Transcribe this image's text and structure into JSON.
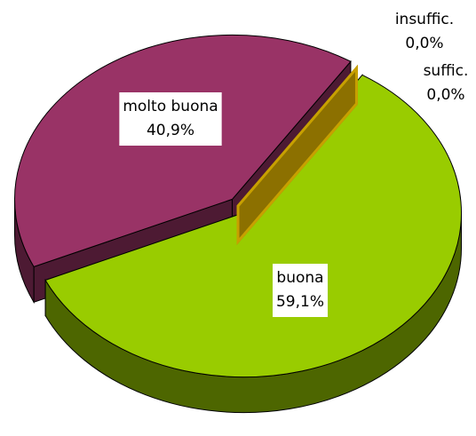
{
  "chart_data": {
    "type": "pie",
    "categories": [
      "insuffic.",
      "suffic.",
      "buona",
      "molto buona"
    ],
    "values": [
      0.0,
      0.0,
      59.1,
      40.9
    ],
    "value_labels": [
      "0,0%",
      "0,0%",
      "59,1%",
      "40,9%"
    ],
    "colors": [
      "#8c6d1f",
      "#c8a000",
      "#99cc00",
      "#993366"
    ]
  }
}
